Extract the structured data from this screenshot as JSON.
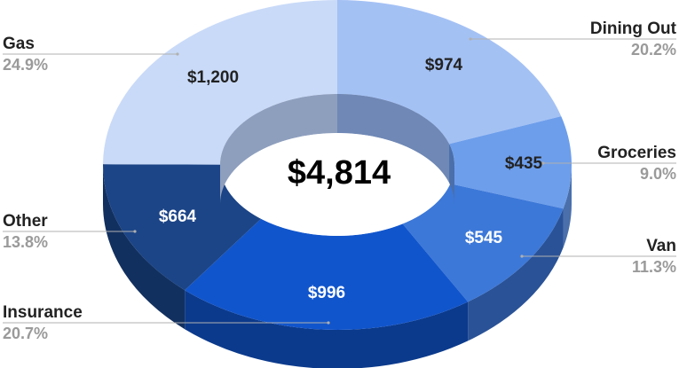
{
  "chart_data": {
    "type": "pie",
    "variant": "3d-donut",
    "total_label": "$4,814",
    "slices": [
      {
        "name": "Dining Out",
        "value": 974,
        "value_label": "$974",
        "percent_label": "20.2%",
        "color": "#a4c1f4",
        "side": "#6f88b5",
        "text_color": "#222222"
      },
      {
        "name": "Groceries",
        "value": 435,
        "value_label": "$435",
        "percent_label": "9.0%",
        "color": "#6d9eeb",
        "side": "#4a6fab",
        "text_color": "#222222"
      },
      {
        "name": "Van",
        "value": 545,
        "value_label": "$545",
        "percent_label": "11.3%",
        "color": "#3c78d8",
        "side": "#2a5296",
        "text_color": "#ffffff"
      },
      {
        "name": "Insurance",
        "value": 996,
        "value_label": "$996",
        "percent_label": "20.7%",
        "color": "#1155cc",
        "side": "#0b3a8c",
        "text_color": "#ffffff"
      },
      {
        "name": "Other",
        "value": 664,
        "value_label": "$664",
        "percent_label": "13.8%",
        "color": "#1c4587",
        "side": "#12305f",
        "text_color": "#ffffff"
      },
      {
        "name": "Gas",
        "value": 1200,
        "value_label": "$1,200",
        "percent_label": "24.9%",
        "color": "#c9daf8",
        "side": "#8e9fbe",
        "text_color": "#222222"
      }
    ],
    "legend": "outside-labels"
  }
}
